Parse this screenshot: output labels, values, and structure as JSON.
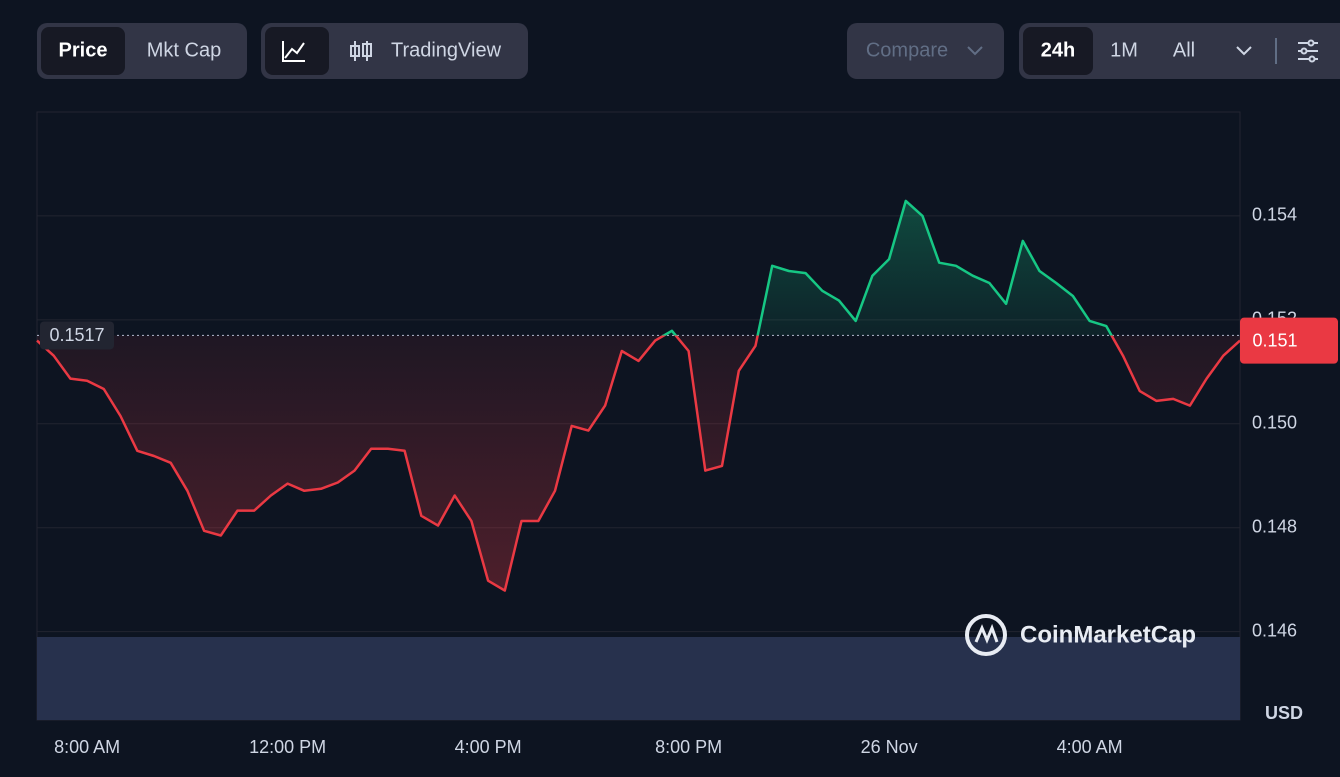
{
  "toolbar": {
    "price_tab": "Price",
    "mktcap_tab": "Mkt Cap",
    "tradingview": "TradingView",
    "compare": "Compare",
    "ranges": [
      "24h",
      "1M",
      "All"
    ]
  },
  "chart_data": {
    "type": "line",
    "categories": [
      null,
      null,
      null,
      "8:00 AM",
      null,
      null,
      null,
      null,
      null,
      null,
      null,
      null,
      null,
      null,
      null,
      "12:00 PM",
      null,
      null,
      null,
      null,
      null,
      null,
      null,
      null,
      null,
      null,
      null,
      "4:00 PM",
      null,
      null,
      null,
      null,
      null,
      null,
      null,
      null,
      null,
      null,
      null,
      "8:00 PM",
      null,
      null,
      null,
      null,
      null,
      null,
      null,
      null,
      null,
      null,
      null,
      "26 Nov",
      null,
      null,
      null,
      null,
      null,
      null,
      null,
      null,
      null,
      null,
      null,
      "4:00 AM",
      null,
      null,
      null,
      null,
      null,
      null,
      null,
      null,
      null
    ],
    "values": [
      0.1516,
      0.15131,
      0.15087,
      0.15083,
      0.15067,
      0.15015,
      0.14948,
      0.14938,
      0.14925,
      0.14871,
      0.14794,
      0.14785,
      0.14833,
      0.14833,
      0.14862,
      0.14885,
      0.14871,
      0.14875,
      0.14887,
      0.1491,
      0.14952,
      0.14952,
      0.14948,
      0.14823,
      0.14804,
      0.14862,
      0.14813,
      0.14698,
      0.14679,
      0.14813,
      0.14813,
      0.14871,
      0.14996,
      0.14987,
      0.15035,
      0.1514,
      0.15121,
      0.1516,
      0.15179,
      0.1514,
      0.1491,
      0.14919,
      0.15102,
      0.1515,
      0.15304,
      0.15294,
      0.1529,
      0.15256,
      0.15237,
      0.15198,
      0.15285,
      0.15317,
      0.15429,
      0.154,
      0.1531,
      0.15304,
      0.15285,
      0.15271,
      0.15231,
      0.15352,
      0.15294,
      0.15271,
      0.15246,
      0.15198,
      0.15188,
      0.15131,
      0.15063,
      0.15044,
      0.15048,
      0.15035,
      0.15087,
      0.15131,
      0.1516
    ],
    "up_color": "#16c784",
    "down_color": "#ea3943",
    "reference_value": 0.1517,
    "price_label": "0.151",
    "y_axis_label": "USD",
    "watermark": "CoinMarketCap",
    "ylim": [
      0.1443,
      0.156
    ],
    "yticks": [
      0.146,
      0.148,
      {
        "value": 0.15,
        "label": "0.150"
      },
      0.152,
      0.154
    ],
    "grid": true
  }
}
